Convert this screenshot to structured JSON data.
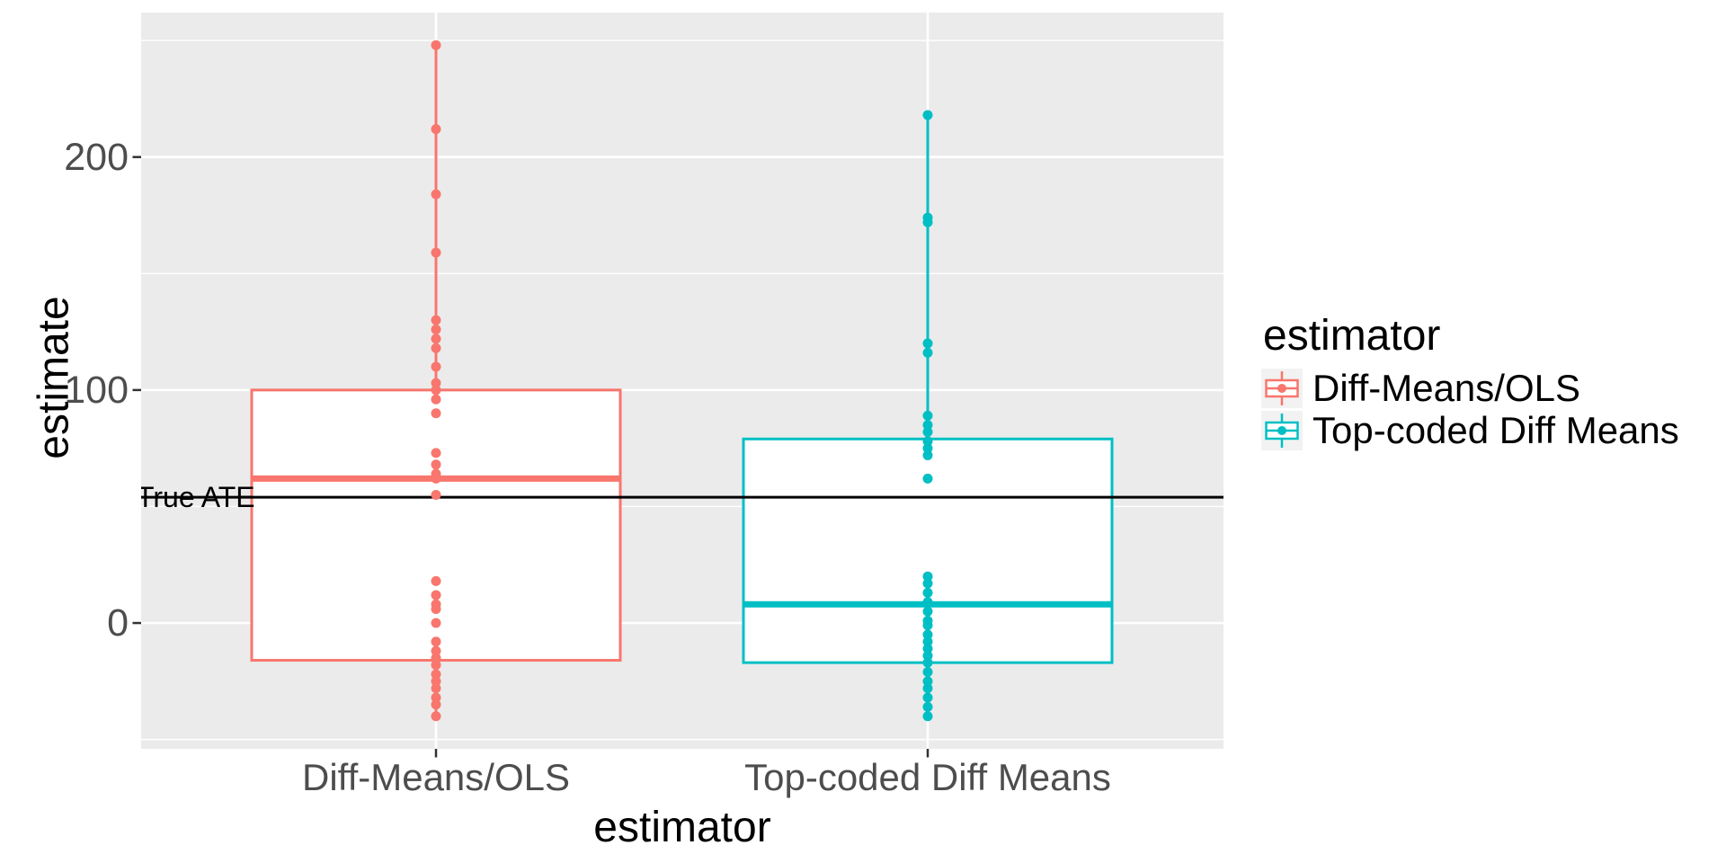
{
  "chart_data": {
    "type": "boxplot",
    "title": "",
    "xlabel": "estimator",
    "ylabel": "estimate",
    "ylim": [
      -54,
      262
    ],
    "grid": true,
    "panel_background": "#EBEBEB",
    "gridline_color": "#FFFFFF",
    "axis_text_color": "#4D4D4D",
    "yticks": [
      {
        "value": 0,
        "label": "0"
      },
      {
        "value": 100,
        "label": "100"
      },
      {
        "value": 200,
        "label": "200"
      }
    ],
    "y_minor_gridlines": [
      -50,
      50,
      150,
      250
    ],
    "true_ate": {
      "value": 54,
      "label": "True ATE",
      "color": "#000000"
    },
    "groups": [
      {
        "label": "Diff-Means/OLS",
        "color": "#F8766D",
        "box": {
          "q1": -16,
          "median": 62,
          "q3": 100,
          "whisker_low": -40,
          "whisker_high": 248
        },
        "points": [
          248,
          212,
          184,
          159,
          130,
          126,
          122,
          118,
          110,
          103,
          100,
          96,
          90,
          73,
          68,
          64,
          62,
          55,
          18,
          12,
          8,
          6,
          0,
          -8,
          -12,
          -15,
          -18,
          -22,
          -25,
          -28,
          -32,
          -35,
          -40
        ]
      },
      {
        "label": "Top-coded Diff Means",
        "color": "#00BFC4",
        "box": {
          "q1": -17,
          "median": 8,
          "q3": 79,
          "whisker_low": -40,
          "whisker_high": 218
        },
        "points": [
          218,
          174,
          172,
          120,
          116,
          89,
          85,
          82,
          78,
          75,
          72,
          62,
          20,
          17,
          13,
          9,
          5,
          1,
          -1,
          -5,
          -8,
          -11,
          -14,
          -17,
          -21,
          -25,
          -28,
          -32,
          -36,
          -40
        ]
      }
    ],
    "legend": {
      "title": "estimator",
      "position": "right",
      "key_background": "#F2F2F2",
      "entries": [
        {
          "label": "Diff-Means/OLS",
          "color": "#F8766D"
        },
        {
          "label": "Top-coded Diff Means",
          "color": "#00BFC4"
        }
      ]
    }
  }
}
